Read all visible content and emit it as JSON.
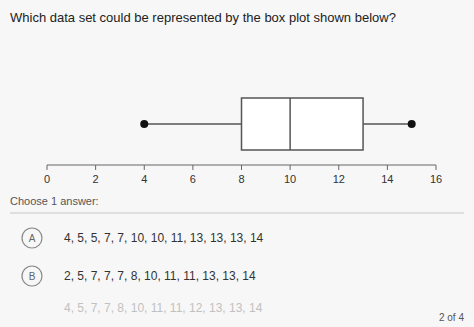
{
  "chart_data": {
    "type": "box",
    "title": "Which data set could be represented by the box plot shown below?",
    "min": 4,
    "q1": 8,
    "median": 10,
    "q3": 13,
    "max": 15,
    "xlim": [
      0,
      16
    ],
    "xticks": [
      0,
      2,
      4,
      6,
      8,
      10,
      12,
      14,
      16
    ],
    "annotations": [
      "Choose 1 answer:",
      "A",
      "4, 5, 5, 7, 7, 10, 10, 11, 13, 13, 13, 14",
      "B",
      "2, 5, 7, 7, 7, 8, 10, 11, 11, 13, 13, 14",
      "4, 5, 7, 7, 8, 10, 11, 11, 12, 13, 13, 14",
      "2 of 4"
    ]
  }
}
